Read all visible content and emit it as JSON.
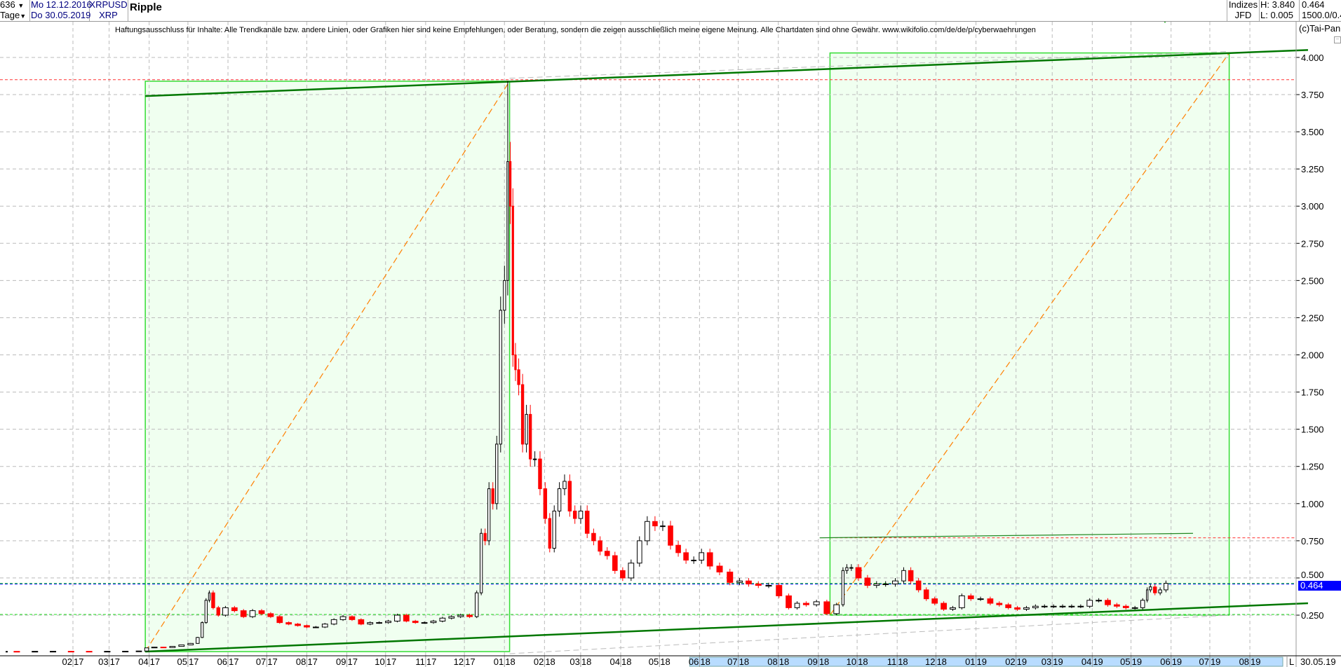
{
  "header": {
    "count": "636",
    "period": "Tage",
    "start_date": "Mo 12.12.2016",
    "end_date": "Do 30.05.2019",
    "symbol": "XRPUSD",
    "symbol_short": "XRP",
    "title": "Ripple",
    "index_label": "Indizes",
    "source": "JFD",
    "high": "H: 3.840",
    "low": "L: 0.005",
    "last": "0.464",
    "scale": "1500.0/0.4"
  },
  "disclaimer": "Haftungsausschluss für Inhalte: Alle Trendkanäle bzw. andere Linien, oder Grafiken hier sind keine Empfehlungen, oder Beratung, sondern die zeigen ausschließlich meine eigene Meinung. Alle Chartdaten sind ohne Gewähr.  www.wikifolio.com/de/de/p/cyberwaehrungen",
  "copyright": "(c)Tai-Pan",
  "last_price_label": "0.464",
  "last_date": "30.05.19",
  "l_marker": "L",
  "colors": {
    "up": "#000000",
    "down": "#ff0000",
    "channel": "#007700",
    "box_fill": "#f0fff0",
    "box_border": "#33dd33",
    "diagonal": "#ff8000",
    "last_price": "#0000ff",
    "axis_highlight": "#b8dcff"
  },
  "chart_data": {
    "type": "candlestick",
    "ylim": [
      0,
      4.1
    ],
    "y_ticks": [
      "4.000",
      "3.750",
      "3.500",
      "3.250",
      "3.000",
      "2.750",
      "2.500",
      "2.250",
      "2.000",
      "1.750",
      "1.500",
      "1.250",
      "1.000",
      "0.750",
      "0.500",
      "0.250"
    ],
    "x_ticks": [
      {
        "date": "2017-02-01",
        "m": "02",
        "y": "17"
      },
      {
        "date": "2017-03-01",
        "m": "03",
        "y": "17"
      },
      {
        "date": "2017-04-01",
        "m": "04",
        "y": "17"
      },
      {
        "date": "2017-05-01",
        "m": "05",
        "y": "17"
      },
      {
        "date": "2017-06-01",
        "m": "06",
        "y": "17"
      },
      {
        "date": "2017-07-01",
        "m": "07",
        "y": "17"
      },
      {
        "date": "2017-08-01",
        "m": "08",
        "y": "17"
      },
      {
        "date": "2017-09-01",
        "m": "09",
        "y": "17"
      },
      {
        "date": "2017-10-01",
        "m": "10",
        "y": "17"
      },
      {
        "date": "2017-11-01",
        "m": "11",
        "y": "17"
      },
      {
        "date": "2017-12-01",
        "m": "12",
        "y": "17"
      },
      {
        "date": "2018-01-01",
        "m": "01",
        "y": "18"
      },
      {
        "date": "2018-02-01",
        "m": "02",
        "y": "18"
      },
      {
        "date": "2018-03-01",
        "m": "03",
        "y": "18"
      },
      {
        "date": "2018-04-01",
        "m": "04",
        "y": "18"
      },
      {
        "date": "2018-05-01",
        "m": "05",
        "y": "18"
      },
      {
        "date": "2018-06-01",
        "m": "06",
        "y": "18"
      },
      {
        "date": "2018-07-01",
        "m": "07",
        "y": "18"
      },
      {
        "date": "2018-08-01",
        "m": "08",
        "y": "18"
      },
      {
        "date": "2018-09-01",
        "m": "09",
        "y": "18"
      },
      {
        "date": "2018-10-01",
        "m": "10",
        "y": "18"
      },
      {
        "date": "2018-11-01",
        "m": "11",
        "y": "18"
      },
      {
        "date": "2018-12-01",
        "m": "12",
        "y": "18"
      },
      {
        "date": "2019-01-01",
        "m": "01",
        "y": "19"
      },
      {
        "date": "2019-02-01",
        "m": "02",
        "y": "19"
      },
      {
        "date": "2019-03-01",
        "m": "03",
        "y": "19"
      },
      {
        "date": "2019-04-01",
        "m": "04",
        "y": "19"
      },
      {
        "date": "2019-05-01",
        "m": "05",
        "y": "19"
      },
      {
        "date": "2019-06-01",
        "m": "06",
        "y": "19"
      },
      {
        "date": "2019-07-01",
        "m": "07",
        "y": "19"
      },
      {
        "date": "2019-08-01",
        "m": "08",
        "y": "19"
      }
    ],
    "high": 3.84,
    "high_date": "2018-01-04",
    "closes": [
      [
        "2016-12-12",
        0.0065
      ],
      [
        "2016-12-26",
        0.0063
      ],
      [
        "2017-01-09",
        0.0068
      ],
      [
        "2017-01-23",
        0.007
      ],
      [
        "2017-02-06",
        0.0068
      ],
      [
        "2017-02-20",
        0.0065
      ],
      [
        "2017-03-06",
        0.007
      ],
      [
        "2017-03-20",
        0.0075
      ],
      [
        "2017-03-27",
        0.009
      ],
      [
        "2017-04-01",
        0.03
      ],
      [
        "2017-04-08",
        0.035
      ],
      [
        "2017-04-15",
        0.032
      ],
      [
        "2017-04-22",
        0.04
      ],
      [
        "2017-04-29",
        0.05
      ],
      [
        "2017-05-06",
        0.06
      ],
      [
        "2017-05-10",
        0.1
      ],
      [
        "2017-05-13",
        0.2
      ],
      [
        "2017-05-16",
        0.35
      ],
      [
        "2017-05-18",
        0.4
      ],
      [
        "2017-05-22",
        0.3
      ],
      [
        "2017-05-26",
        0.25
      ],
      [
        "2017-06-02",
        0.3
      ],
      [
        "2017-06-09",
        0.28
      ],
      [
        "2017-06-16",
        0.24
      ],
      [
        "2017-06-23",
        0.28
      ],
      [
        "2017-06-30",
        0.26
      ],
      [
        "2017-07-07",
        0.24
      ],
      [
        "2017-07-14",
        0.2
      ],
      [
        "2017-07-21",
        0.19
      ],
      [
        "2017-07-28",
        0.18
      ],
      [
        "2017-08-04",
        0.17
      ],
      [
        "2017-08-11",
        0.17
      ],
      [
        "2017-08-18",
        0.19
      ],
      [
        "2017-08-25",
        0.22
      ],
      [
        "2017-09-01",
        0.24
      ],
      [
        "2017-09-08",
        0.22
      ],
      [
        "2017-09-15",
        0.19
      ],
      [
        "2017-09-22",
        0.2
      ],
      [
        "2017-09-29",
        0.2
      ],
      [
        "2017-10-06",
        0.21
      ],
      [
        "2017-10-13",
        0.25
      ],
      [
        "2017-10-20",
        0.21
      ],
      [
        "2017-10-27",
        0.2
      ],
      [
        "2017-11-03",
        0.2
      ],
      [
        "2017-11-10",
        0.21
      ],
      [
        "2017-11-17",
        0.23
      ],
      [
        "2017-11-24",
        0.24
      ],
      [
        "2017-12-01",
        0.25
      ],
      [
        "2017-12-08",
        0.24
      ],
      [
        "2017-12-12",
        0.4
      ],
      [
        "2017-12-15",
        0.8
      ],
      [
        "2017-12-18",
        0.75
      ],
      [
        "2017-12-21",
        1.1
      ],
      [
        "2017-12-24",
        1.0
      ],
      [
        "2017-12-27",
        1.4
      ],
      [
        "2017-12-30",
        2.3
      ],
      [
        "2018-01-02",
        2.5
      ],
      [
        "2018-01-04",
        3.3
      ],
      [
        "2018-01-06",
        3.0
      ],
      [
        "2018-01-08",
        2.0
      ],
      [
        "2018-01-10",
        1.9
      ],
      [
        "2018-01-13",
        1.8
      ],
      [
        "2018-01-16",
        1.4
      ],
      [
        "2018-01-19",
        1.6
      ],
      [
        "2018-01-22",
        1.3
      ],
      [
        "2018-01-26",
        1.3
      ],
      [
        "2018-01-30",
        1.1
      ],
      [
        "2018-02-03",
        0.9
      ],
      [
        "2018-02-06",
        0.7
      ],
      [
        "2018-02-10",
        0.95
      ],
      [
        "2018-02-14",
        1.1
      ],
      [
        "2018-02-18",
        1.15
      ],
      [
        "2018-02-22",
        0.95
      ],
      [
        "2018-02-26",
        0.9
      ],
      [
        "2018-03-03",
        0.95
      ],
      [
        "2018-03-08",
        0.8
      ],
      [
        "2018-03-13",
        0.75
      ],
      [
        "2018-03-18",
        0.68
      ],
      [
        "2018-03-24",
        0.65
      ],
      [
        "2018-03-30",
        0.55
      ],
      [
        "2018-04-05",
        0.5
      ],
      [
        "2018-04-12",
        0.6
      ],
      [
        "2018-04-18",
        0.75
      ],
      [
        "2018-04-24",
        0.88
      ],
      [
        "2018-04-30",
        0.85
      ],
      [
        "2018-05-06",
        0.85
      ],
      [
        "2018-05-12",
        0.72
      ],
      [
        "2018-05-18",
        0.67
      ],
      [
        "2018-05-24",
        0.62
      ],
      [
        "2018-05-30",
        0.62
      ],
      [
        "2018-06-05",
        0.67
      ],
      [
        "2018-06-12",
        0.58
      ],
      [
        "2018-06-20",
        0.54
      ],
      [
        "2018-06-28",
        0.47
      ],
      [
        "2018-07-05",
        0.48
      ],
      [
        "2018-07-12",
        0.46
      ],
      [
        "2018-07-20",
        0.45
      ],
      [
        "2018-07-28",
        0.45
      ],
      [
        "2018-08-05",
        0.38
      ],
      [
        "2018-08-12",
        0.3
      ],
      [
        "2018-08-18",
        0.33
      ],
      [
        "2018-08-26",
        0.32
      ],
      [
        "2018-09-03",
        0.34
      ],
      [
        "2018-09-11",
        0.26
      ],
      [
        "2018-09-18",
        0.32
      ],
      [
        "2018-09-21",
        0.55
      ],
      [
        "2018-09-24",
        0.57
      ],
      [
        "2018-09-28",
        0.57
      ],
      [
        "2018-10-05",
        0.5
      ],
      [
        "2018-10-12",
        0.45
      ],
      [
        "2018-10-19",
        0.46
      ],
      [
        "2018-10-26",
        0.46
      ],
      [
        "2018-11-03",
        0.48
      ],
      [
        "2018-11-08",
        0.55
      ],
      [
        "2018-11-14",
        0.48
      ],
      [
        "2018-11-20",
        0.42
      ],
      [
        "2018-11-26",
        0.36
      ],
      [
        "2018-12-03",
        0.33
      ],
      [
        "2018-12-10",
        0.29
      ],
      [
        "2018-12-17",
        0.3
      ],
      [
        "2018-12-24",
        0.38
      ],
      [
        "2018-12-31",
        0.36
      ],
      [
        "2019-01-08",
        0.36
      ],
      [
        "2019-01-15",
        0.33
      ],
      [
        "2019-01-22",
        0.32
      ],
      [
        "2019-01-29",
        0.3
      ],
      [
        "2019-02-05",
        0.29
      ],
      [
        "2019-02-12",
        0.3
      ],
      [
        "2019-02-19",
        0.31
      ],
      [
        "2019-02-26",
        0.31
      ],
      [
        "2019-03-05",
        0.31
      ],
      [
        "2019-03-12",
        0.31
      ],
      [
        "2019-03-19",
        0.31
      ],
      [
        "2019-03-26",
        0.31
      ],
      [
        "2019-04-02",
        0.35
      ],
      [
        "2019-04-09",
        0.35
      ],
      [
        "2019-04-16",
        0.32
      ],
      [
        "2019-04-23",
        0.31
      ],
      [
        "2019-04-30",
        0.3
      ],
      [
        "2019-05-07",
        0.3
      ],
      [
        "2019-05-12",
        0.35
      ],
      [
        "2019-05-14",
        0.42
      ],
      [
        "2019-05-17",
        0.44
      ],
      [
        "2019-05-21",
        0.4
      ],
      [
        "2019-05-25",
        0.42
      ],
      [
        "2019-05-30",
        0.464
      ]
    ],
    "drawings": {
      "boxes": [
        {
          "from": [
            "2017-03-29",
            0.005
          ],
          "to": [
            "2018-01-05",
            3.84
          ]
        },
        {
          "from": [
            "2018-09-10",
            0.25
          ],
          "to": [
            "2019-07-16",
            4.03
          ]
        }
      ],
      "channel_top": {
        "from": [
          "2017-03-29",
          3.74
        ],
        "to": [
          "2019-09-15",
          4.05
        ]
      },
      "channel_bottom": {
        "from": [
          "2017-03-29",
          0.005
        ],
        "to": [
          "2019-09-15",
          0.33
        ]
      },
      "resistance_line": {
        "from": [
          "2018-09-02",
          0.77
        ],
        "to": [
          "2019-06-18",
          0.8
        ]
      },
      "horizontal_levels": [
        {
          "price": 3.85,
          "style": "red-dotted"
        },
        {
          "price": 0.77,
          "style": "red-dotted",
          "from": "2018-09-10"
        },
        {
          "price": 0.464,
          "style": "green-dotted"
        },
        {
          "price": 0.464,
          "style": "blue-dotted"
        },
        {
          "price": 0.255,
          "style": "green-dotted"
        }
      ]
    }
  }
}
